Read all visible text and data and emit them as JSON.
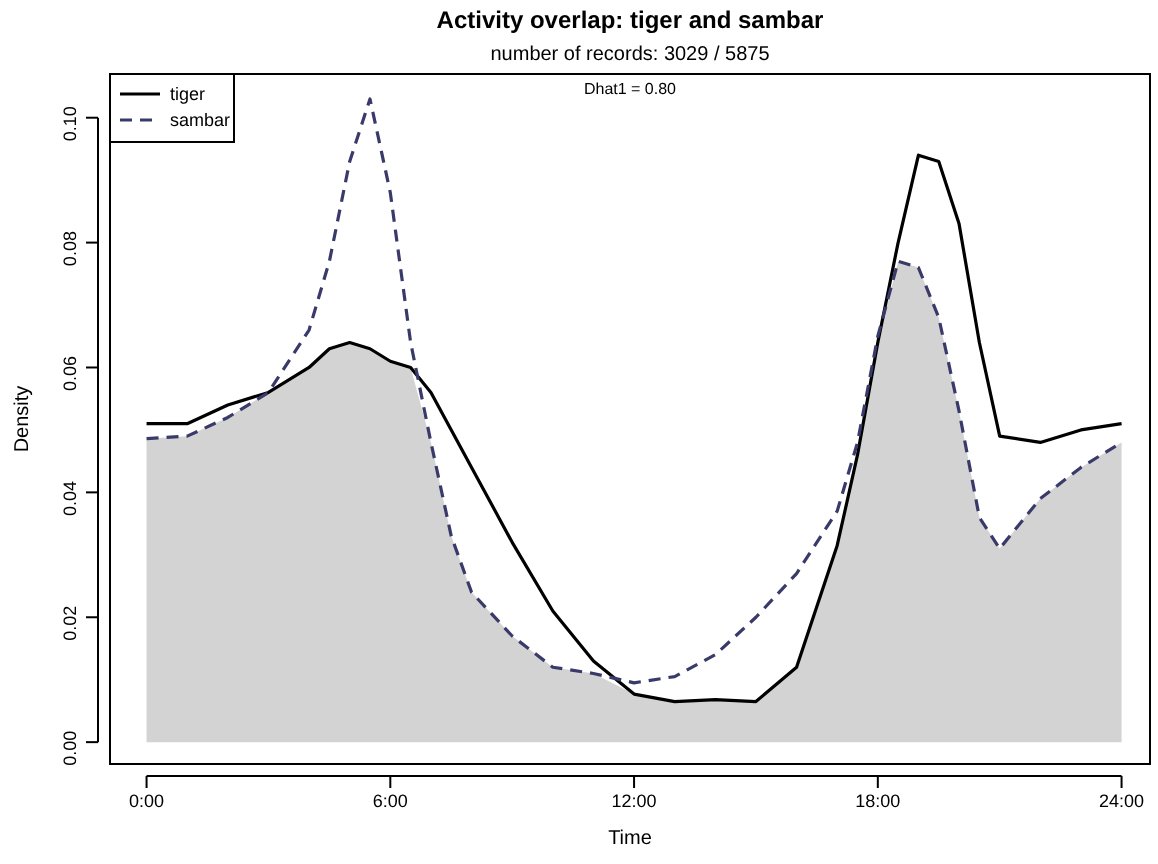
{
  "chart_data": {
    "type": "line",
    "title": "Activity overlap: tiger and sambar",
    "subtitle": "number of records: 3029 / 5875",
    "annotations": [
      "Dhat1 = 0.80"
    ],
    "xlabel": "Time",
    "ylabel": "Density",
    "legend": "top left",
    "x": [
      0,
      1,
      2,
      3,
      4,
      4.5,
      5,
      5.5,
      6,
      6.5,
      7,
      7.5,
      8,
      9,
      10,
      11,
      12,
      13,
      14,
      15,
      16,
      17,
      17.5,
      18,
      18.5,
      19,
      19.5,
      20,
      20.5,
      21,
      22,
      23,
      24
    ],
    "series": [
      {
        "type": "area",
        "color": "#d3d3d3",
        "values": [
          0.0486,
          0.049,
          0.052,
          0.056,
          0.06,
          0.063,
          0.064,
          0.063,
          0.061,
          0.06,
          0.048,
          0.033,
          0.024,
          0.017,
          0.012,
          0.011,
          0.0077,
          0.0065,
          0.0068,
          0.0065,
          0.012,
          0.0315,
          0.046,
          0.064,
          0.077,
          0.076,
          0.068,
          0.053,
          0.036,
          0.031,
          0.039,
          0.044,
          0.048
        ]
      },
      {
        "name": "tiger",
        "color": "#000000",
        "line_style": "solid",
        "values": [
          0.051,
          0.051,
          0.054,
          0.056,
          0.06,
          0.063,
          0.064,
          0.063,
          0.061,
          0.06,
          0.056,
          0.05,
          0.044,
          0.032,
          0.021,
          0.013,
          0.0077,
          0.0065,
          0.0068,
          0.0065,
          0.012,
          0.0315,
          0.046,
          0.064,
          0.08,
          0.094,
          0.093,
          0.083,
          0.064,
          0.049,
          0.048,
          0.05,
          0.051
        ]
      },
      {
        "name": "sambar",
        "color": "#3a3a6a",
        "line_style": "dashed",
        "values": [
          0.0486,
          0.049,
          0.052,
          0.056,
          0.066,
          0.077,
          0.093,
          0.103,
          0.088,
          0.064,
          0.048,
          0.033,
          0.024,
          0.017,
          0.012,
          0.011,
          0.0095,
          0.0105,
          0.014,
          0.02,
          0.027,
          0.037,
          0.048,
          0.065,
          0.077,
          0.076,
          0.068,
          0.053,
          0.036,
          0.031,
          0.039,
          0.044,
          0.048
        ]
      }
    ],
    "xlim": [
      -0.9,
      24.7
    ],
    "ylim": [
      -0.0035,
      0.107
    ],
    "xticks": [
      {
        "value": 0,
        "label": "0:00"
      },
      {
        "value": 6,
        "label": "6:00"
      },
      {
        "value": 12,
        "label": "12:00"
      },
      {
        "value": 18,
        "label": "18:00"
      },
      {
        "value": 24,
        "label": "24:00"
      }
    ],
    "yticks": [
      {
        "value": 0,
        "label": "0.00"
      },
      {
        "value": 0.02,
        "label": "0.02"
      },
      {
        "value": 0.04,
        "label": "0.04"
      },
      {
        "value": 0.06,
        "label": "0.06"
      },
      {
        "value": 0.08,
        "label": "0.08"
      },
      {
        "value": 0.1,
        "label": "0.10"
      }
    ]
  }
}
